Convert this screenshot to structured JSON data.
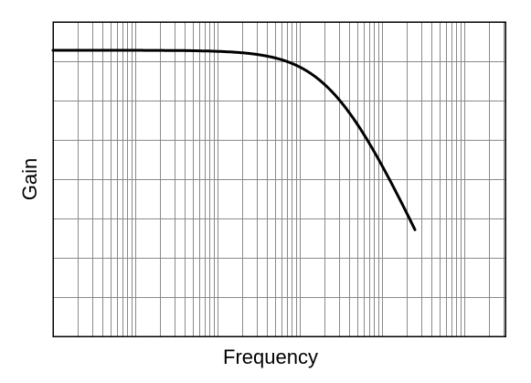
{
  "chart_data": {
    "type": "line",
    "title": "",
    "xlabel": "Frequency",
    "ylabel": "Gain",
    "x_scale": "log",
    "x_decades": 5.5,
    "y_divisions": 8,
    "grid": true,
    "legend": "none",
    "series": [
      {
        "color": "#000000",
        "cutoff_position": 0.62,
        "passband_level": 0.09,
        "rolloff_per_decade": 0.565,
        "end_position": 0.8
      }
    ]
  }
}
